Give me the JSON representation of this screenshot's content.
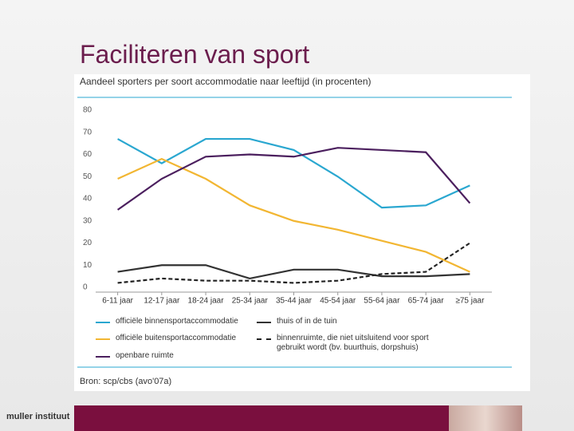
{
  "slide_title": "Faciliteren van sport",
  "logo": "muller instituut",
  "chart_data": {
    "type": "line",
    "title": "Aandeel sporters per soort accommodatie naar leeftijd (in procenten)",
    "source": "Bron: scp/cbs (avo'07a)",
    "categories": [
      "6-11 jaar",
      "12-17 jaar",
      "18-24 jaar",
      "25-34 jaar",
      "35-44 jaar",
      "45-54 jaar",
      "55-64 jaar",
      "65-74 jaar",
      "≥75 jaar"
    ],
    "ylim": [
      0,
      80
    ],
    "yticks": [
      0,
      10,
      20,
      30,
      40,
      50,
      60,
      70,
      80
    ],
    "grid": false,
    "series": [
      {
        "name": "officiële binnensportaccommodatie",
        "color": "#2aa7d0",
        "style": "solid",
        "values": [
          67,
          56,
          67,
          67,
          62,
          50,
          36,
          37,
          46
        ]
      },
      {
        "name": "thuis of in de tuin",
        "color": "#333333",
        "style": "solid",
        "values": [
          7,
          10,
          10,
          4,
          8,
          8,
          5,
          5,
          6
        ]
      },
      {
        "name": "officiële buitensportaccommodatie",
        "color": "#f2b632",
        "style": "solid",
        "values": [
          49,
          58,
          49,
          37,
          30,
          26,
          21,
          16,
          7
        ]
      },
      {
        "name": "binnenruimte, die niet uitsluitend voor sport gebruikt wordt (bv. buurthuis, dorpshuis)",
        "color": "#222222",
        "style": "dashed",
        "values": [
          2,
          4,
          3,
          3,
          2,
          3,
          6,
          7,
          20
        ]
      },
      {
        "name": "openbare ruimte",
        "color": "#4b1f5e",
        "style": "solid",
        "values": [
          35,
          49,
          59,
          60,
          59,
          63,
          62,
          61,
          38
        ]
      }
    ]
  }
}
